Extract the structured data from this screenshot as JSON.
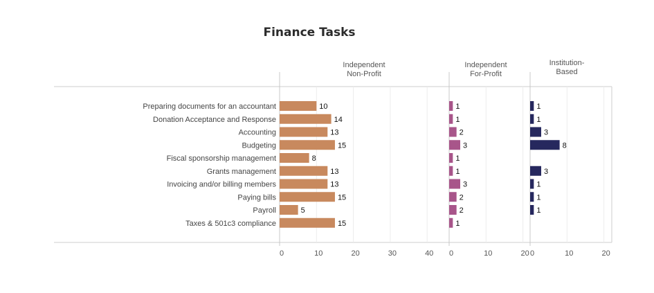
{
  "chart_data": {
    "type": "bar",
    "orientation": "horizontal",
    "title": "Finance Tasks",
    "categories": [
      "Preparing documents for an accountant",
      "Donation Acceptance and Response",
      "Accounting",
      "Budgeting",
      "Fiscal sponsorship management",
      "Grants management",
      "Invoicing and/or billing members",
      "Paying bills",
      "Payroll",
      "Taxes & 501c3 compliance"
    ],
    "panels": [
      {
        "header": [
          "Independent",
          "Non-Profit"
        ],
        "xlim": [
          0,
          45
        ],
        "ticks": [
          0,
          10,
          20,
          30,
          40
        ],
        "color": "#c8895e",
        "values": [
          10,
          14,
          13,
          15,
          8,
          13,
          13,
          15,
          5,
          15
        ]
      },
      {
        "header": [
          "Independent",
          "For-Profit"
        ],
        "xlim": [
          0,
          20
        ],
        "ticks": [
          0,
          10,
          20
        ],
        "color": "#a8558a",
        "values": [
          1,
          1,
          2,
          3,
          1,
          1,
          3,
          2,
          2,
          1
        ]
      },
      {
        "header": [
          "Institution-",
          "Based"
        ],
        "xlim": [
          0,
          22
        ],
        "ticks": [
          0,
          10,
          20
        ],
        "color": "#26285e",
        "values": [
          1,
          1,
          3,
          8,
          null,
          3,
          1,
          1,
          1,
          null
        ]
      }
    ],
    "grid": true,
    "legend": "none"
  }
}
